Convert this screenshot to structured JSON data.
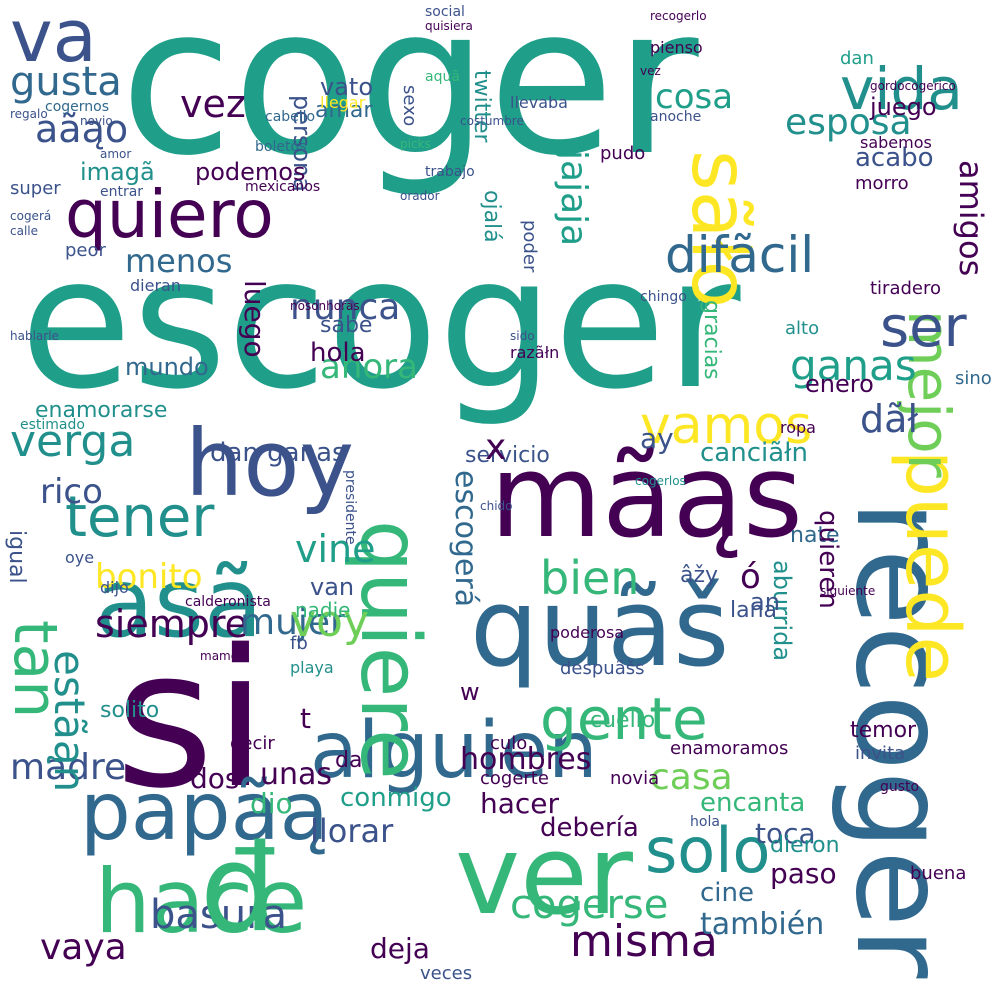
{
  "palette": {
    "dark_purple": "#440154",
    "indigo": "#3b528b",
    "slate_blue": "#31688e",
    "teal": "#21908c",
    "green_teal": "#1f9e89",
    "green": "#35b779",
    "light_green": "#6ece58",
    "yellow": "#fde725"
  },
  "words": [
    {
      "text": "coger"
    },
    {
      "text": "escoger"
    },
    {
      "text": "si"
    },
    {
      "text": "recoger"
    },
    {
      "text": "mãąs"
    },
    {
      "text": "quiero"
    },
    {
      "text": "hoy"
    },
    {
      "text": "asã"
    },
    {
      "text": "quãš"
    },
    {
      "text": "tener"
    },
    {
      "text": "alguien"
    },
    {
      "text": "papãą"
    },
    {
      "text": "hace"
    },
    {
      "text": "ver"
    },
    {
      "text": "solo"
    },
    {
      "text": "quiere"
    },
    {
      "text": "puede"
    },
    {
      "text": "mejor"
    },
    {
      "text": "gente"
    },
    {
      "text": "vamos"
    },
    {
      "text": "ganas"
    },
    {
      "text": "sãło"
    },
    {
      "text": "vida"
    },
    {
      "text": "va"
    },
    {
      "text": "gusta"
    },
    {
      "text": "aãąo"
    },
    {
      "text": "vez"
    },
    {
      "text": "jajaja"
    },
    {
      "text": "difãcil"
    },
    {
      "text": "ser"
    },
    {
      "text": "amigos"
    },
    {
      "text": "verga"
    },
    {
      "text": "rico"
    },
    {
      "text": "bonito"
    },
    {
      "text": "siempre"
    },
    {
      "text": "mujer"
    },
    {
      "text": "madre"
    },
    {
      "text": "basura"
    },
    {
      "text": "vaya"
    },
    {
      "text": "misma"
    },
    {
      "text": "cogerse"
    },
    {
      "text": "casa"
    },
    {
      "text": "bien"
    },
    {
      "text": "voy"
    },
    {
      "text": "vine"
    },
    {
      "text": "tan"
    },
    {
      "text": "estãąn"
    },
    {
      "text": "đ"
    },
    {
      "text": "ahora"
    },
    {
      "text": "nunca"
    },
    {
      "text": "menos"
    },
    {
      "text": "esposa"
    },
    {
      "text": "cosa"
    },
    {
      "text": "hola"
    },
    {
      "text": "sabe"
    },
    {
      "text": "luego"
    },
    {
      "text": "enero"
    },
    {
      "text": "dãł"
    },
    {
      "text": "canciãłn"
    },
    {
      "text": "servicio"
    },
    {
      "text": "hombres"
    },
    {
      "text": "encanta"
    },
    {
      "text": "llorar"
    },
    {
      "text": "hacer"
    },
    {
      "text": "conmigo"
    },
    {
      "text": "también"
    },
    {
      "text": "paso"
    },
    {
      "text": "cine"
    },
    {
      "text": "deja"
    },
    {
      "text": "veces"
    },
    {
      "text": "toca"
    },
    {
      "text": "debería"
    },
    {
      "text": "unas"
    },
    {
      "text": "dos"
    },
    {
      "text": "dio"
    },
    {
      "text": "nadie"
    },
    {
      "text": "van"
    },
    {
      "text": "mundo"
    },
    {
      "text": "enamorarse"
    },
    {
      "text": "dan"
    },
    {
      "text": "amar"
    },
    {
      "text": "vato"
    },
    {
      "text": "persona"
    },
    {
      "text": "podemos"
    },
    {
      "text": "imagã"
    },
    {
      "text": "acabo"
    },
    {
      "text": "juego"
    },
    {
      "text": "dan ganas"
    },
    {
      "text": "x"
    },
    {
      "text": "escogerá"
    },
    {
      "text": "gracias"
    },
    {
      "text": "ay"
    },
    {
      "text": "lana"
    },
    {
      "text": "nate"
    },
    {
      "text": "quieren"
    },
    {
      "text": "aburrida"
    },
    {
      "text": "ó"
    },
    {
      "text": "âžy"
    },
    {
      "text": "an"
    },
    {
      "text": "cuello"
    },
    {
      "text": "novia"
    },
    {
      "text": "enamoramos"
    },
    {
      "text": "dieron"
    },
    {
      "text": "temor"
    },
    {
      "text": "buena"
    },
    {
      "text": "invita"
    },
    {
      "text": "sino"
    },
    {
      "text": "morro"
    },
    {
      "text": "sabemos"
    },
    {
      "text": "alto"
    },
    {
      "text": "tiradero"
    },
    {
      "text": "pienso"
    },
    {
      "text": "llevaba"
    },
    {
      "text": "anoche"
    },
    {
      "text": "pudo"
    },
    {
      "text": "llegar"
    },
    {
      "text": "sexo"
    },
    {
      "text": "twitter"
    },
    {
      "text": "ojalá"
    },
    {
      "text": "poder"
    },
    {
      "text": "trabajo"
    },
    {
      "text": "super"
    },
    {
      "text": "peor"
    },
    {
      "text": "dieran"
    },
    {
      "text": "igual"
    },
    {
      "text": "oye"
    },
    {
      "text": "dijo"
    },
    {
      "text": "estimado"
    },
    {
      "text": "fb"
    },
    {
      "text": "solito"
    },
    {
      "text": "decir"
    },
    {
      "text": "culo"
    },
    {
      "text": "da"
    },
    {
      "text": "t"
    },
    {
      "text": "w"
    },
    {
      "text": "cogerte"
    },
    {
      "text": "playa"
    },
    {
      "text": "hablarle"
    },
    {
      "text": "mamen"
    },
    {
      "text": "picks"
    },
    {
      "text": "social"
    },
    {
      "text": "quisiera"
    },
    {
      "text": "cabello"
    },
    {
      "text": "boletos"
    },
    {
      "text": "cogernos"
    },
    {
      "text": "novio"
    },
    {
      "text": "entrar"
    },
    {
      "text": "calle"
    },
    {
      "text": "mexicanos"
    },
    {
      "text": "regalo"
    },
    {
      "text": "chingo"
    },
    {
      "text": "nosonhoras"
    },
    {
      "text": "costumbre"
    },
    {
      "text": "sido"
    },
    {
      "text": "ropa"
    },
    {
      "text": "razãłn"
    },
    {
      "text": "chido"
    },
    {
      "text": "presidente"
    },
    {
      "text": "despuãšs"
    },
    {
      "text": "poderosa"
    },
    {
      "text": "orador"
    },
    {
      "text": "cogerá"
    },
    {
      "text": "cogerlos"
    },
    {
      "text": "calderonista"
    },
    {
      "text": "siguiente"
    },
    {
      "text": "gusto"
    },
    {
      "text": "hola"
    },
    {
      "text": "aquã"
    },
    {
      "text": "gordocogerico"
    },
    {
      "text": "amor"
    },
    {
      "text": "recogerlo"
    },
    {
      "text": "vez"
    }
  ]
}
